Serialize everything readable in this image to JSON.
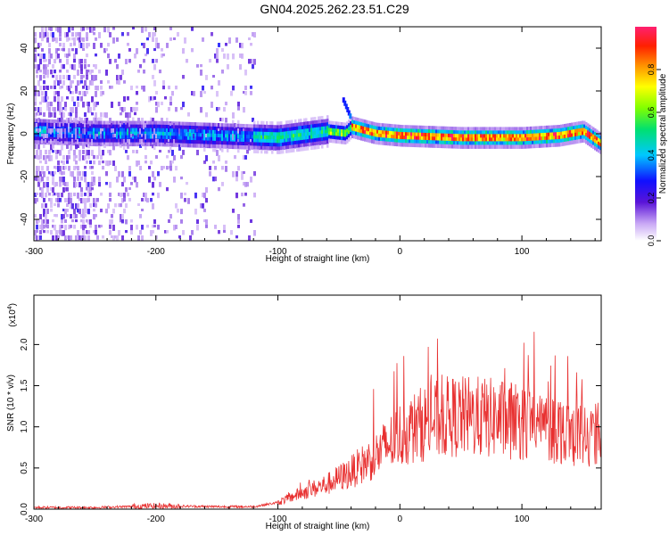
{
  "title": "GN04.2025.262.23.51.C29",
  "colorbar": {
    "label": "Normalized spectral amplitude",
    "ticks": [
      "0.0",
      "0.2",
      "0.4",
      "0.6",
      "0.8"
    ],
    "tick_values": [
      0.0,
      0.2,
      0.4,
      0.6,
      0.8
    ],
    "range": [
      0,
      1
    ]
  },
  "chart_data": [
    {
      "type": "heatmap",
      "name": "spectrogram",
      "xlabel": "Height of straight line (km)",
      "ylabel": "Frequency (Hz)",
      "xlim": [
        -300,
        165
      ],
      "ylim": [
        -50,
        50
      ],
      "xticks": [
        -300,
        -200,
        -100,
        0,
        100
      ],
      "xtick_labels": [
        "-300",
        "-200",
        "-100",
        "0",
        "100"
      ],
      "yticks": [
        -40,
        -20,
        0,
        20,
        40
      ],
      "ytick_labels": [
        "-40",
        "-20",
        "0",
        "20",
        "40"
      ],
      "ridge": {
        "description_of_peak_frequency": "spectral energy concentrated near 0 Hz",
        "x": [
          -300,
          -250,
          -200,
          -150,
          -100,
          -60,
          -45,
          -40,
          -20,
          0,
          50,
          100,
          130,
          150,
          165
        ],
        "y": [
          2,
          1,
          1,
          0,
          -1,
          2,
          1,
          4,
          1,
          0,
          -1,
          -1,
          0,
          2,
          -4
        ]
      },
      "noise_region_x": [
        -300,
        -120
      ]
    },
    {
      "type": "line",
      "name": "snr",
      "xlabel": "Height of straight line (km)",
      "ylabel": "SNR (10 * v/v)",
      "y_multiplier_label": "(x10",
      "y_multiplier_exp": "4",
      "y_multiplier_close": ")",
      "xlim": [
        -300,
        165
      ],
      "ylim": [
        0,
        2.6
      ],
      "xticks": [
        -300,
        -200,
        -100,
        0,
        100
      ],
      "xtick_labels": [
        "-300",
        "-200",
        "-100",
        "0",
        "100"
      ],
      "yticks": [
        0.0,
        0.5,
        1.0,
        1.5,
        2.0
      ],
      "ytick_labels": [
        "0.0",
        "0.5",
        "1.0",
        "1.5",
        "2.0"
      ],
      "series": [
        {
          "color": "#e83030",
          "x": [
            -300,
            -250,
            -200,
            -150,
            -120,
            -100,
            -80,
            -60,
            -40,
            -20,
            0,
            20,
            40,
            60,
            80,
            100,
            120,
            140,
            150,
            165
          ],
          "y": [
            0.02,
            0.02,
            0.04,
            0.03,
            0.03,
            0.08,
            0.2,
            0.3,
            0.45,
            0.65,
            0.9,
            1.05,
            1.12,
            1.12,
            1.1,
            1.05,
            1.0,
            0.95,
            0.9,
            0.9
          ]
        }
      ]
    }
  ]
}
